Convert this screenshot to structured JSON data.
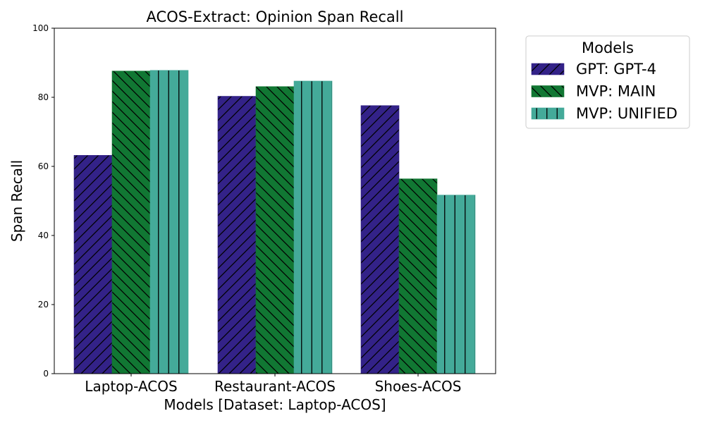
{
  "chart_data": {
    "type": "bar",
    "title": "ACOS-Extract: Opinion Span Recall",
    "xlabel": "Models [Dataset: Laptop-ACOS]",
    "ylabel": "Span Recall",
    "categories": [
      "Laptop-ACOS",
      "Restaurant-ACOS",
      "Shoes-ACOS"
    ],
    "ylim": [
      0,
      100
    ],
    "yticks": [
      "0",
      "20",
      "40",
      "60",
      "80",
      "100"
    ],
    "legend_title": "Models",
    "legend_position": "outside right, top",
    "grid": false,
    "series": [
      {
        "name": "GPT: GPT-4",
        "values": [
          63.2,
          80.3,
          77.6
        ],
        "color": "#332288",
        "hatch": "forward-diagonal"
      },
      {
        "name": "MVP: MAIN",
        "values": [
          87.6,
          83.1,
          56.4
        ],
        "color": "#117733",
        "hatch": "backward-diagonal"
      },
      {
        "name": "MVP: UNIFIED",
        "values": [
          87.8,
          84.7,
          51.7
        ],
        "color": "#44AA99",
        "hatch": "vertical"
      }
    ]
  }
}
